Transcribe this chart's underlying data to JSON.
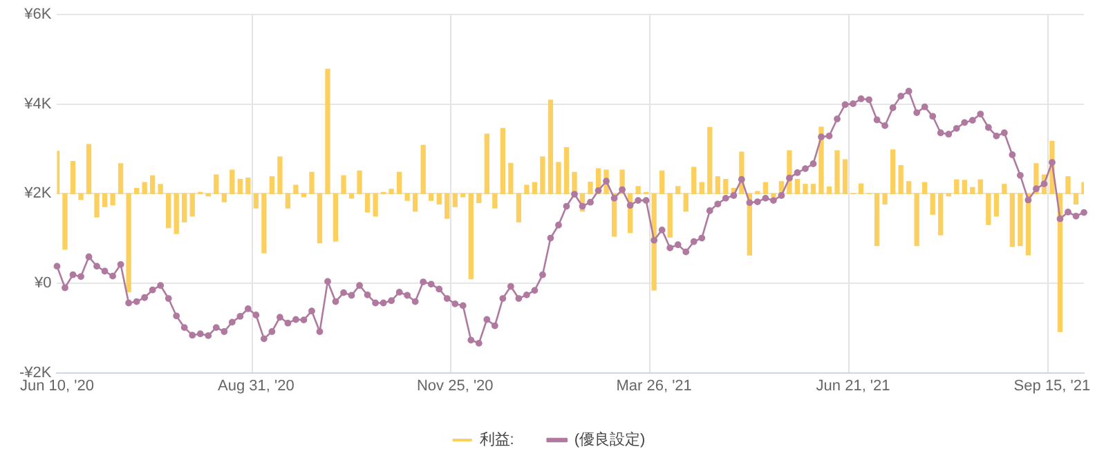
{
  "chart_data": {
    "type": "bar",
    "categories": [
      "Jun 10, '20",
      null,
      null,
      null,
      null,
      null,
      null,
      null,
      null,
      null,
      null,
      null,
      null,
      null,
      null,
      null,
      null,
      null,
      null,
      null,
      null,
      null,
      null,
      null,
      null,
      "Aug 31, '20",
      null,
      null,
      null,
      null,
      null,
      null,
      null,
      null,
      null,
      null,
      null,
      null,
      null,
      null,
      null,
      null,
      null,
      null,
      null,
      null,
      null,
      null,
      null,
      null,
      "Nov 25, '20",
      null,
      null,
      null,
      null,
      null,
      null,
      null,
      null,
      null,
      null,
      null,
      null,
      null,
      null,
      null,
      null,
      null,
      null,
      null,
      null,
      null,
      null,
      null,
      null,
      "Mar 26, '21",
      null,
      null,
      null,
      null,
      null,
      null,
      null,
      null,
      null,
      null,
      null,
      null,
      null,
      null,
      null,
      null,
      null,
      null,
      null,
      null,
      null,
      null,
      null,
      null,
      "Jun 21, '21",
      null,
      null,
      null,
      null,
      null,
      null,
      null,
      null,
      null,
      null,
      null,
      null,
      null,
      null,
      null,
      null,
      null,
      null,
      null,
      null,
      null,
      null,
      null,
      null,
      "Sep 15, '21",
      null,
      null,
      null,
      null
    ],
    "series": [
      {
        "name": "利益:",
        "color": "#fcd05e",
        "base": [
          2000,
          2000,
          2000,
          2000,
          2000,
          2000,
          2000,
          2000,
          2000,
          2000,
          2000,
          2000,
          2000,
          2000,
          2000,
          2000,
          2000,
          2000,
          2000,
          2000,
          2000,
          2000,
          2000,
          2000,
          2000,
          2000,
          2000,
          2000,
          2000,
          2000,
          2000,
          2000,
          2000,
          2000,
          2000,
          2000,
          2000,
          2000,
          2000,
          2000,
          2000,
          2000,
          2000,
          2000,
          2000,
          2000,
          2000,
          2000,
          2000,
          2000,
          2000,
          2000,
          2000,
          2000,
          2000,
          2000,
          2000,
          2000,
          2000,
          2000,
          2000,
          2000,
          2000,
          2000,
          2000,
          2000,
          2000,
          2000,
          2000,
          2000,
          2000,
          2000,
          2000,
          2000,
          2000,
          2000,
          2000,
          2000,
          2000,
          2000,
          2000,
          2000,
          2000,
          2000,
          2000,
          2000,
          2000,
          2000,
          2000,
          2000,
          2000,
          2000,
          2000,
          2000,
          2000,
          2000,
          2000,
          2000,
          2000,
          2000,
          2000,
          2000,
          2000,
          2000,
          2000,
          2000,
          2000,
          2000,
          2000,
          2000,
          2000,
          2000,
          2000,
          2000,
          2000,
          2000,
          2000,
          2000,
          2000,
          2000,
          2000,
          2000,
          2000,
          2000,
          2000,
          2000,
          2000,
          2000,
          2000,
          2000
        ],
        "values": [
          950,
          -1240,
          720,
          -130,
          1100,
          -520,
          -290,
          -250,
          670,
          -2190,
          120,
          250,
          400,
          210,
          -760,
          -890,
          -630,
          -500,
          30,
          -50,
          420,
          -180,
          530,
          320,
          350,
          -320,
          -1320,
          380,
          820,
          -320,
          190,
          -70,
          480,
          -1100,
          2780,
          -1060,
          400,
          -100,
          510,
          -410,
          -500,
          30,
          100,
          480,
          -150,
          -390,
          1080,
          -150,
          -230,
          -550,
          -290,
          -70,
          -1900,
          -200,
          1330,
          -320,
          1460,
          680,
          -630,
          190,
          250,
          820,
          2090,
          700,
          1030,
          480,
          -390,
          260,
          560,
          530,
          -950,
          530,
          -870,
          160,
          30,
          -2150,
          510,
          -970,
          160,
          -390,
          590,
          250,
          1480,
          380,
          320,
          120,
          930,
          -1370,
          50,
          250,
          -70,
          270,
          960,
          320,
          210,
          210,
          1490,
          150,
          960,
          760,
          0,
          220,
          0,
          -1160,
          -230,
          980,
          630,
          270,
          -1160,
          250,
          -460,
          -920,
          -50,
          310,
          300,
          140,
          310,
          -690,
          -500,
          210,
          -1180,
          -1160,
          -1370,
          670,
          420,
          1170,
          -3080,
          380,
          -230,
          250
        ]
      },
      {
        "name": "(優良設定)",
        "type": "line",
        "color": "#b0799f",
        "values": [
          380,
          -100,
          190,
          150,
          590,
          380,
          270,
          160,
          420,
          -440,
          -410,
          -320,
          -150,
          -50,
          -340,
          -730,
          -990,
          -1160,
          -1130,
          -1170,
          -990,
          -1080,
          -870,
          -740,
          -570,
          -710,
          -1240,
          -1080,
          -760,
          -890,
          -810,
          -820,
          -620,
          -1080,
          40,
          -410,
          -210,
          -270,
          -50,
          -260,
          -440,
          -440,
          -390,
          -200,
          -270,
          -410,
          30,
          -20,
          -130,
          -340,
          -460,
          -500,
          -1270,
          -1340,
          -810,
          -950,
          -340,
          -70,
          -340,
          -260,
          -160,
          190,
          1010,
          1300,
          1720,
          1990,
          1720,
          1810,
          2070,
          2280,
          1900,
          2090,
          1740,
          1850,
          1850,
          960,
          1190,
          790,
          860,
          700,
          930,
          1010,
          1620,
          1770,
          1900,
          1960,
          2320,
          1800,
          1820,
          1900,
          1850,
          1960,
          2350,
          2470,
          2560,
          2670,
          3270,
          3290,
          3670,
          3990,
          4010,
          4120,
          4100,
          3650,
          3520,
          3920,
          4180,
          4290,
          3810,
          3940,
          3730,
          3360,
          3330,
          3460,
          3590,
          3640,
          3780,
          3480,
          3290,
          3360,
          2870,
          2410,
          1860,
          2110,
          2220,
          2700,
          1440,
          1590,
          1500,
          1580
        ]
      }
    ],
    "ylim": [
      -2000,
      6000
    ],
    "yticks": [
      {
        "value": -2000,
        "label": "-¥2K"
      },
      {
        "value": 0,
        "label": "¥0"
      },
      {
        "value": 2000,
        "label": "¥2K"
      },
      {
        "value": 4000,
        "label": "¥4K"
      },
      {
        "value": 6000,
        "label": "¥6K"
      }
    ],
    "grid": true,
    "legend": "bottom",
    "marker": "circle",
    "line_style": "solid"
  }
}
